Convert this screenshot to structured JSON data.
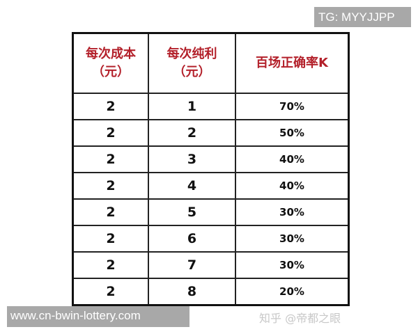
{
  "overlay": {
    "tg_label": "TG: MYYJJPP",
    "site_label": "www.cn-bwin-lottery.com"
  },
  "table": {
    "headers": [
      "每次成本\n（元）",
      "每次纯利\n（元）",
      "百场正确率K"
    ],
    "header_color": "#b3202a",
    "rows": [
      [
        "2",
        "1",
        "70%"
      ],
      [
        "2",
        "2",
        "50%"
      ],
      [
        "2",
        "3",
        "40%"
      ],
      [
        "2",
        "4",
        "40%"
      ],
      [
        "2",
        "5",
        "30%"
      ],
      [
        "2",
        "6",
        "30%"
      ],
      [
        "2",
        "7",
        "30%"
      ],
      [
        "2",
        "8",
        "20%"
      ]
    ]
  },
  "watermark": "知乎 @帝都之眼"
}
